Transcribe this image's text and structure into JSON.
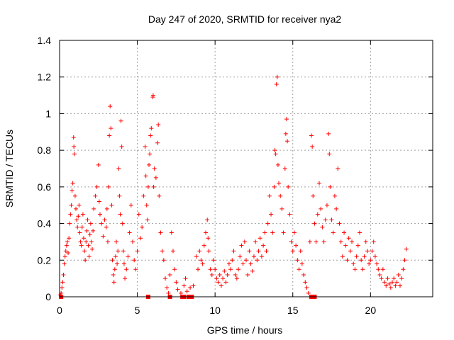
{
  "chart_data": {
    "type": "scatter",
    "title": "Day 247 of 2020, SRMTID for receiver nya2",
    "xlabel": "GPS time / hours",
    "ylabel": "SRMTID / TECUs",
    "xlim": [
      0,
      24
    ],
    "ylim": [
      0,
      1.4
    ],
    "xticks": [
      0,
      5,
      10,
      15,
      20
    ],
    "xtick_labels": [
      "0",
      "5",
      "10",
      "15",
      "20"
    ],
    "yticks": [
      0,
      0.2,
      0.4,
      0.6,
      0.8,
      1.0,
      1.2,
      1.4
    ],
    "ytick_labels": [
      "0",
      "0.2",
      "0.4",
      "0.6",
      "0.8",
      "1",
      "1.2",
      "1.4"
    ],
    "grid": true,
    "color": "#ff0000",
    "marker": "plus",
    "series": [
      {
        "name": "SRMTID",
        "points": [
          [
            0.05,
            0.01
          ],
          [
            0.1,
            0.02
          ],
          [
            0.15,
            0.05
          ],
          [
            0.2,
            0.08
          ],
          [
            0.25,
            0.12
          ],
          [
            0.3,
            0.18
          ],
          [
            0.35,
            0.22
          ],
          [
            0.4,
            0.25
          ],
          [
            0.45,
            0.28
          ],
          [
            0.5,
            0.3
          ],
          [
            0.55,
            0.24
          ],
          [
            0.6,
            0.32
          ],
          [
            0.65,
            0.4
          ],
          [
            0.7,
            0.45
          ],
          [
            0.75,
            0.5
          ],
          [
            0.8,
            0.58
          ],
          [
            0.85,
            0.62
          ],
          [
            0.9,
            0.87
          ],
          [
            0.92,
            0.82
          ],
          [
            0.95,
            0.78
          ],
          [
            1.0,
            0.55
          ],
          [
            1.05,
            0.48
          ],
          [
            1.1,
            0.42
          ],
          [
            1.15,
            0.38
          ],
          [
            1.2,
            0.44
          ],
          [
            1.25,
            0.5
          ],
          [
            1.3,
            0.35
          ],
          [
            1.35,
            0.3
          ],
          [
            1.4,
            0.28
          ],
          [
            1.45,
            0.38
          ],
          [
            1.5,
            0.45
          ],
          [
            1.55,
            0.32
          ],
          [
            1.6,
            0.25
          ],
          [
            1.65,
            0.2
          ],
          [
            1.7,
            0.3
          ],
          [
            1.75,
            0.36
          ],
          [
            1.8,
            0.42
          ],
          [
            1.85,
            0.28
          ],
          [
            1.9,
            0.22
          ],
          [
            1.95,
            0.34
          ],
          [
            2.0,
            0.4
          ],
          [
            2.05,
            0.3
          ],
          [
            2.1,
            0.26
          ],
          [
            2.15,
            0.36
          ],
          [
            2.2,
            0.48
          ],
          [
            2.3,
            0.55
          ],
          [
            2.4,
            0.6
          ],
          [
            2.5,
            0.72
          ],
          [
            2.55,
            0.52
          ],
          [
            2.6,
            0.45
          ],
          [
            2.7,
            0.4
          ],
          [
            2.8,
            0.33
          ],
          [
            2.9,
            0.42
          ],
          [
            3.0,
            0.38
          ],
          [
            3.05,
            0.48
          ],
          [
            3.1,
            0.3
          ],
          [
            3.15,
            0.6
          ],
          [
            3.2,
            0.88
          ],
          [
            3.25,
            1.04
          ],
          [
            3.3,
            0.92
          ],
          [
            3.35,
            0.5
          ],
          [
            3.4,
            0.2
          ],
          [
            3.45,
            0.12
          ],
          [
            3.5,
            0.08
          ],
          [
            3.55,
            0.15
          ],
          [
            3.6,
            0.22
          ],
          [
            3.65,
            0.3
          ],
          [
            3.7,
            0.18
          ],
          [
            3.75,
            0.25
          ],
          [
            3.8,
            0.7
          ],
          [
            3.85,
            0.55
          ],
          [
            3.9,
            0.45
          ],
          [
            3.95,
            0.96
          ],
          [
            4.0,
            0.82
          ],
          [
            4.05,
            0.4
          ],
          [
            4.1,
            0.25
          ],
          [
            4.15,
            0.18
          ],
          [
            4.2,
            0.1
          ],
          [
            4.3,
            0.15
          ],
          [
            4.4,
            0.22
          ],
          [
            4.5,
            0.35
          ],
          [
            4.6,
            0.5
          ],
          [
            4.7,
            0.3
          ],
          [
            4.8,
            0.2
          ],
          [
            4.9,
            0.15
          ],
          [
            5.0,
            0.25
          ],
          [
            5.1,
            0.45
          ],
          [
            5.2,
            0.32
          ],
          [
            5.3,
            0.38
          ],
          [
            5.4,
            0.55
          ],
          [
            5.5,
            0.82
          ],
          [
            5.55,
            0.66
          ],
          [
            5.6,
            0.5
          ],
          [
            5.65,
            0.42
          ],
          [
            5.7,
            0.6
          ],
          [
            5.75,
            0.72
          ],
          [
            5.8,
            0.78
          ],
          [
            5.85,
            0.88
          ],
          [
            5.9,
            0.92
          ],
          [
            6.0,
            1.09
          ],
          [
            6.02,
            1.1
          ],
          [
            6.05,
            0.6
          ],
          [
            6.1,
            0.7
          ],
          [
            6.2,
            0.65
          ],
          [
            6.3,
            0.84
          ],
          [
            6.35,
            0.94
          ],
          [
            6.4,
            0.55
          ],
          [
            6.5,
            0.35
          ],
          [
            6.6,
            0.25
          ],
          [
            6.7,
            0.2
          ],
          [
            6.8,
            0.1
          ],
          [
            6.9,
            0.05
          ],
          [
            7.0,
            0.02
          ],
          [
            7.1,
            0.12
          ],
          [
            7.2,
            0.35
          ],
          [
            7.3,
            0.25
          ],
          [
            7.4,
            0.15
          ],
          [
            7.5,
            0.08
          ],
          [
            7.6,
            0.04
          ],
          [
            7.8,
            0.02
          ],
          [
            8.0,
            0.06
          ],
          [
            8.1,
            0.1
          ],
          [
            8.2,
            0.03
          ],
          [
            8.4,
            0.05
          ],
          [
            8.6,
            0.06
          ],
          [
            8.8,
            0.22
          ],
          [
            8.9,
            0.15
          ],
          [
            9.0,
            0.25
          ],
          [
            9.1,
            0.2
          ],
          [
            9.2,
            0.18
          ],
          [
            9.3,
            0.28
          ],
          [
            9.4,
            0.35
          ],
          [
            9.5,
            0.42
          ],
          [
            9.55,
            0.32
          ],
          [
            9.6,
            0.25
          ],
          [
            9.7,
            0.15
          ],
          [
            9.8,
            0.12
          ],
          [
            9.9,
            0.2
          ],
          [
            10.0,
            0.15
          ],
          [
            10.1,
            0.1
          ],
          [
            10.2,
            0.08
          ],
          [
            10.3,
            0.12
          ],
          [
            10.4,
            0.06
          ],
          [
            10.5,
            0.1
          ],
          [
            10.6,
            0.14
          ],
          [
            10.7,
            0.08
          ],
          [
            10.8,
            0.12
          ],
          [
            10.9,
            0.18
          ],
          [
            11.0,
            0.15
          ],
          [
            11.1,
            0.2
          ],
          [
            11.2,
            0.25
          ],
          [
            11.3,
            0.12
          ],
          [
            11.4,
            0.1
          ],
          [
            11.5,
            0.15
          ],
          [
            11.6,
            0.22
          ],
          [
            11.7,
            0.28
          ],
          [
            11.8,
            0.18
          ],
          [
            11.9,
            0.3
          ],
          [
            12.0,
            0.2
          ],
          [
            12.1,
            0.12
          ],
          [
            12.2,
            0.25
          ],
          [
            12.3,
            0.18
          ],
          [
            12.4,
            0.14
          ],
          [
            12.5,
            0.22
          ],
          [
            12.6,
            0.3
          ],
          [
            12.7,
            0.2
          ],
          [
            12.8,
            0.25
          ],
          [
            12.9,
            0.32
          ],
          [
            13.0,
            0.22
          ],
          [
            13.1,
            0.28
          ],
          [
            13.2,
            0.35
          ],
          [
            13.3,
            0.25
          ],
          [
            13.4,
            0.4
          ],
          [
            13.5,
            0.55
          ],
          [
            13.6,
            0.45
          ],
          [
            13.7,
            0.35
          ],
          [
            13.8,
            0.6
          ],
          [
            13.85,
            0.8
          ],
          [
            13.9,
            0.78
          ],
          [
            13.95,
            1.16
          ],
          [
            14.0,
            1.2
          ],
          [
            14.05,
            0.72
          ],
          [
            14.1,
            0.62
          ],
          [
            14.2,
            0.55
          ],
          [
            14.3,
            0.48
          ],
          [
            14.4,
            0.35
          ],
          [
            14.5,
            0.7
          ],
          [
            14.55,
            0.89
          ],
          [
            14.6,
            0.97
          ],
          [
            14.65,
            0.85
          ],
          [
            14.7,
            0.6
          ],
          [
            14.8,
            0.45
          ],
          [
            14.9,
            0.3
          ],
          [
            15.0,
            0.25
          ],
          [
            15.1,
            0.35
          ],
          [
            15.2,
            0.28
          ],
          [
            15.3,
            0.2
          ],
          [
            15.4,
            0.15
          ],
          [
            15.5,
            0.25
          ],
          [
            15.6,
            0.18
          ],
          [
            15.7,
            0.12
          ],
          [
            15.8,
            0.08
          ],
          [
            15.9,
            0.05
          ],
          [
            16.0,
            0.02
          ],
          [
            16.1,
            0.3
          ],
          [
            16.2,
            0.88
          ],
          [
            16.25,
            0.82
          ],
          [
            16.3,
            0.55
          ],
          [
            16.4,
            0.4
          ],
          [
            16.5,
            0.3
          ],
          [
            16.6,
            0.45
          ],
          [
            16.7,
            0.62
          ],
          [
            16.8,
            0.48
          ],
          [
            16.9,
            0.38
          ],
          [
            17.0,
            0.3
          ],
          [
            17.1,
            0.42
          ],
          [
            17.2,
            0.5
          ],
          [
            17.3,
            0.89
          ],
          [
            17.35,
            0.78
          ],
          [
            17.4,
            0.6
          ],
          [
            17.5,
            0.42
          ],
          [
            17.6,
            0.35
          ],
          [
            17.7,
            0.55
          ],
          [
            17.8,
            0.48
          ],
          [
            17.9,
            0.7
          ],
          [
            18.0,
            0.4
          ],
          [
            18.1,
            0.3
          ],
          [
            18.2,
            0.22
          ],
          [
            18.3,
            0.35
          ],
          [
            18.4,
            0.28
          ],
          [
            18.5,
            0.2
          ],
          [
            18.6,
            0.32
          ],
          [
            18.7,
            0.25
          ],
          [
            18.8,
            0.3
          ],
          [
            18.9,
            0.18
          ],
          [
            19.0,
            0.15
          ],
          [
            19.1,
            0.22
          ],
          [
            19.2,
            0.28
          ],
          [
            19.3,
            0.35
          ],
          [
            19.4,
            0.2
          ],
          [
            19.5,
            0.15
          ],
          [
            19.6,
            0.22
          ],
          [
            19.7,
            0.3
          ],
          [
            19.8,
            0.25
          ],
          [
            19.9,
            0.18
          ],
          [
            20.0,
            0.2
          ],
          [
            20.1,
            0.25
          ],
          [
            20.2,
            0.3
          ],
          [
            20.3,
            0.22
          ],
          [
            20.4,
            0.18
          ],
          [
            20.5,
            0.15
          ],
          [
            20.6,
            0.12
          ],
          [
            20.7,
            0.1
          ],
          [
            20.8,
            0.15
          ],
          [
            20.9,
            0.08
          ],
          [
            21.0,
            0.06
          ],
          [
            21.1,
            0.1
          ],
          [
            21.2,
            0.07
          ],
          [
            21.3,
            0.05
          ],
          [
            21.4,
            0.08
          ],
          [
            21.5,
            0.1
          ],
          [
            21.6,
            0.06
          ],
          [
            21.7,
            0.08
          ],
          [
            21.8,
            0.12
          ],
          [
            21.9,
            0.06
          ],
          [
            22.0,
            0.1
          ],
          [
            22.1,
            0.15
          ],
          [
            22.2,
            0.2
          ],
          [
            22.3,
            0.26
          ]
        ],
        "zero_markers": [
          0.1,
          5.7,
          7.1,
          7.9,
          8.0,
          8.3,
          8.5,
          16.2,
          16.4
        ]
      }
    ]
  }
}
